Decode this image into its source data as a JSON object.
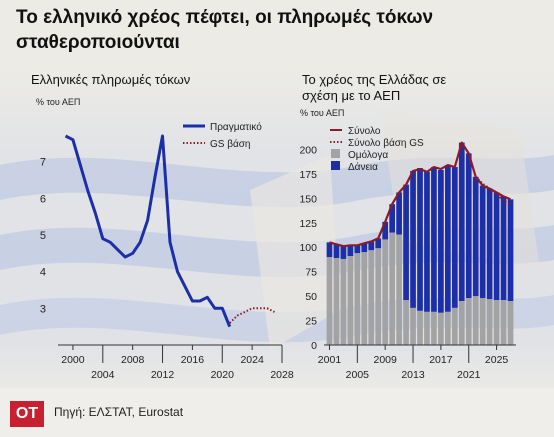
{
  "header": {
    "title": "Το ελληνικό χρέος πέφτει, οι πληρωμές τόκων σταθεροποιούνται"
  },
  "footer": {
    "logo": "ΟΤ",
    "source": "Πηγή: ΕΛΣΤΑΤ, Eurostat"
  },
  "colors": {
    "blue": "#1d2fa6",
    "red": "#8b1a2a",
    "gray": "#a3a3a3",
    "logo_red": "#c8202f"
  },
  "chart_data": [
    {
      "type": "line",
      "title": "Ελληνικές πληρωμές τόκων",
      "ylabel": "% του ΑΕΠ",
      "xlim": [
        1998,
        2028
      ],
      "ylim": [
        2,
        8
      ],
      "yticks": [
        3,
        4,
        5,
        6,
        7
      ],
      "xticks_top": [
        "2000",
        "2008",
        "2016",
        "2024"
      ],
      "xticks_bottom": [
        "2004",
        "2012",
        "2020",
        "2028"
      ],
      "xtick_values_top": [
        2000,
        2008,
        2016,
        2024
      ],
      "xtick_values_bottom": [
        2004,
        2012,
        2020,
        2028
      ],
      "legend": [
        "Πραγματικό",
        "GS βάση"
      ],
      "series": [
        {
          "name": "Πραγματικό",
          "style": "solid",
          "color": "#1d2fa6",
          "x": [
            1999,
            2000,
            2001,
            2002,
            2003,
            2004,
            2005,
            2006,
            2007,
            2008,
            2009,
            2010,
            2011,
            2012,
            2013,
            2014,
            2015,
            2016,
            2017,
            2018,
            2019,
            2020,
            2021
          ],
          "y": [
            7.7,
            7.6,
            6.9,
            6.2,
            5.6,
            4.9,
            4.8,
            4.6,
            4.4,
            4.5,
            4.8,
            5.4,
            6.6,
            7.7,
            4.8,
            4.0,
            3.6,
            3.2,
            3.2,
            3.3,
            3.0,
            3.0,
            2.5
          ]
        },
        {
          "name": "GS βάση",
          "style": "dotted",
          "color": "#8b1a2a",
          "x": [
            2021,
            2022,
            2023,
            2024,
            2025,
            2026,
            2027
          ],
          "y": [
            2.6,
            2.8,
            2.9,
            3.0,
            3.0,
            3.0,
            2.9
          ]
        }
      ]
    },
    {
      "type": "bar",
      "title": "Το χρέος της Ελλάδας σε σχέση με το ΑΕΠ",
      "ylabel": "% του ΑΕΠ",
      "ylim": [
        0,
        225
      ],
      "yticks": [
        0,
        25,
        50,
        75,
        100,
        125,
        150,
        175,
        200
      ],
      "xticks_top": [
        "2001",
        "2009",
        "2017",
        "2025"
      ],
      "xticks_bottom": [
        "2005",
        "2013",
        "2021"
      ],
      "xtick_values_top": [
        2001,
        2009,
        2017,
        2025
      ],
      "xtick_values_bottom": [
        2005,
        2013,
        2021
      ],
      "legend": [
        "Σύνολο",
        "Σύνολο βάση GS",
        "Ομόλογα",
        "Δάνεια"
      ],
      "x": [
        2001,
        2002,
        2003,
        2004,
        2005,
        2006,
        2007,
        2008,
        2009,
        2010,
        2011,
        2012,
        2013,
        2014,
        2015,
        2016,
        2017,
        2018,
        2019,
        2020,
        2021,
        2022,
        2023,
        2024,
        2025,
        2026,
        2027
      ],
      "series": [
        {
          "name": "Ομόλογα",
          "color": "#a3a3a3",
          "values": [
            90,
            89,
            88,
            91,
            94,
            95,
            97,
            99,
            108,
            115,
            113,
            46,
            38,
            35,
            34,
            34,
            33,
            34,
            38,
            45,
            48,
            50,
            48,
            47,
            46,
            46,
            45
          ]
        },
        {
          "name": "Δάνεια",
          "color": "#1d2fa6",
          "values": [
            15,
            14,
            13,
            11,
            8,
            9,
            9,
            10,
            18,
            29,
            43,
            118,
            140,
            146,
            143,
            148,
            146,
            150,
            144,
            162,
            148,
            122,
            115,
            113,
            110,
            106,
            104
          ]
        },
        {
          "name": "Σύνολο",
          "color": "#8b1a2a",
          "style": "solid",
          "values": [
            105,
            103,
            101,
            102,
            102,
            104,
            106,
            109,
            126,
            144,
            156,
            164,
            178,
            180,
            177,
            182,
            180,
            184,
            182,
            207,
            196,
            172,
            163,
            160,
            156,
            152,
            149
          ]
        },
        {
          "name": "Σύνολο βάση GS",
          "color": "#8b1a2a",
          "style": "dotted",
          "values": [
            null,
            null,
            null,
            null,
            null,
            null,
            null,
            null,
            null,
            null,
            null,
            null,
            null,
            null,
            null,
            null,
            null,
            null,
            null,
            null,
            null,
            172,
            165,
            160,
            154,
            148,
            143
          ]
        }
      ]
    }
  ]
}
